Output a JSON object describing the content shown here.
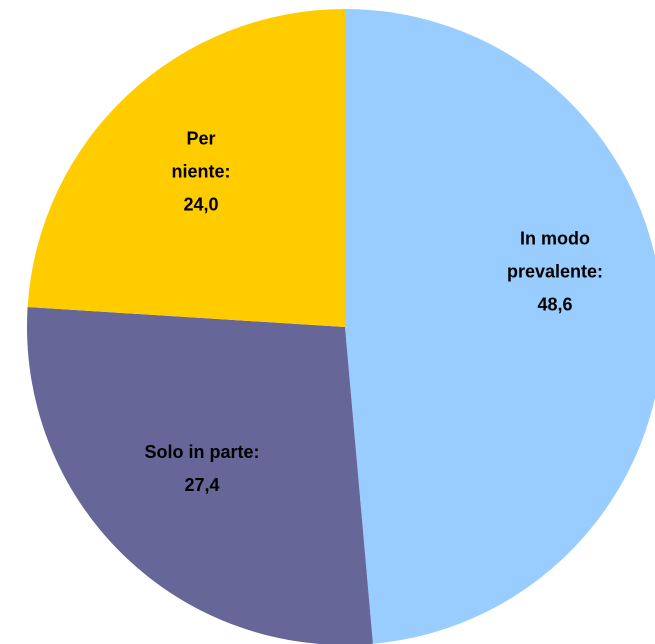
{
  "chart_data": {
    "type": "pie",
    "categories": [
      "In modo prevalente:",
      "Solo in parte:",
      "Per niente:"
    ],
    "values": [
      48.6,
      27.4,
      24.0
    ],
    "value_labels": [
      "48,6",
      "27,4",
      "24,0"
    ],
    "colors": [
      "#99ccff",
      "#666699",
      "#ffcc00"
    ]
  }
}
